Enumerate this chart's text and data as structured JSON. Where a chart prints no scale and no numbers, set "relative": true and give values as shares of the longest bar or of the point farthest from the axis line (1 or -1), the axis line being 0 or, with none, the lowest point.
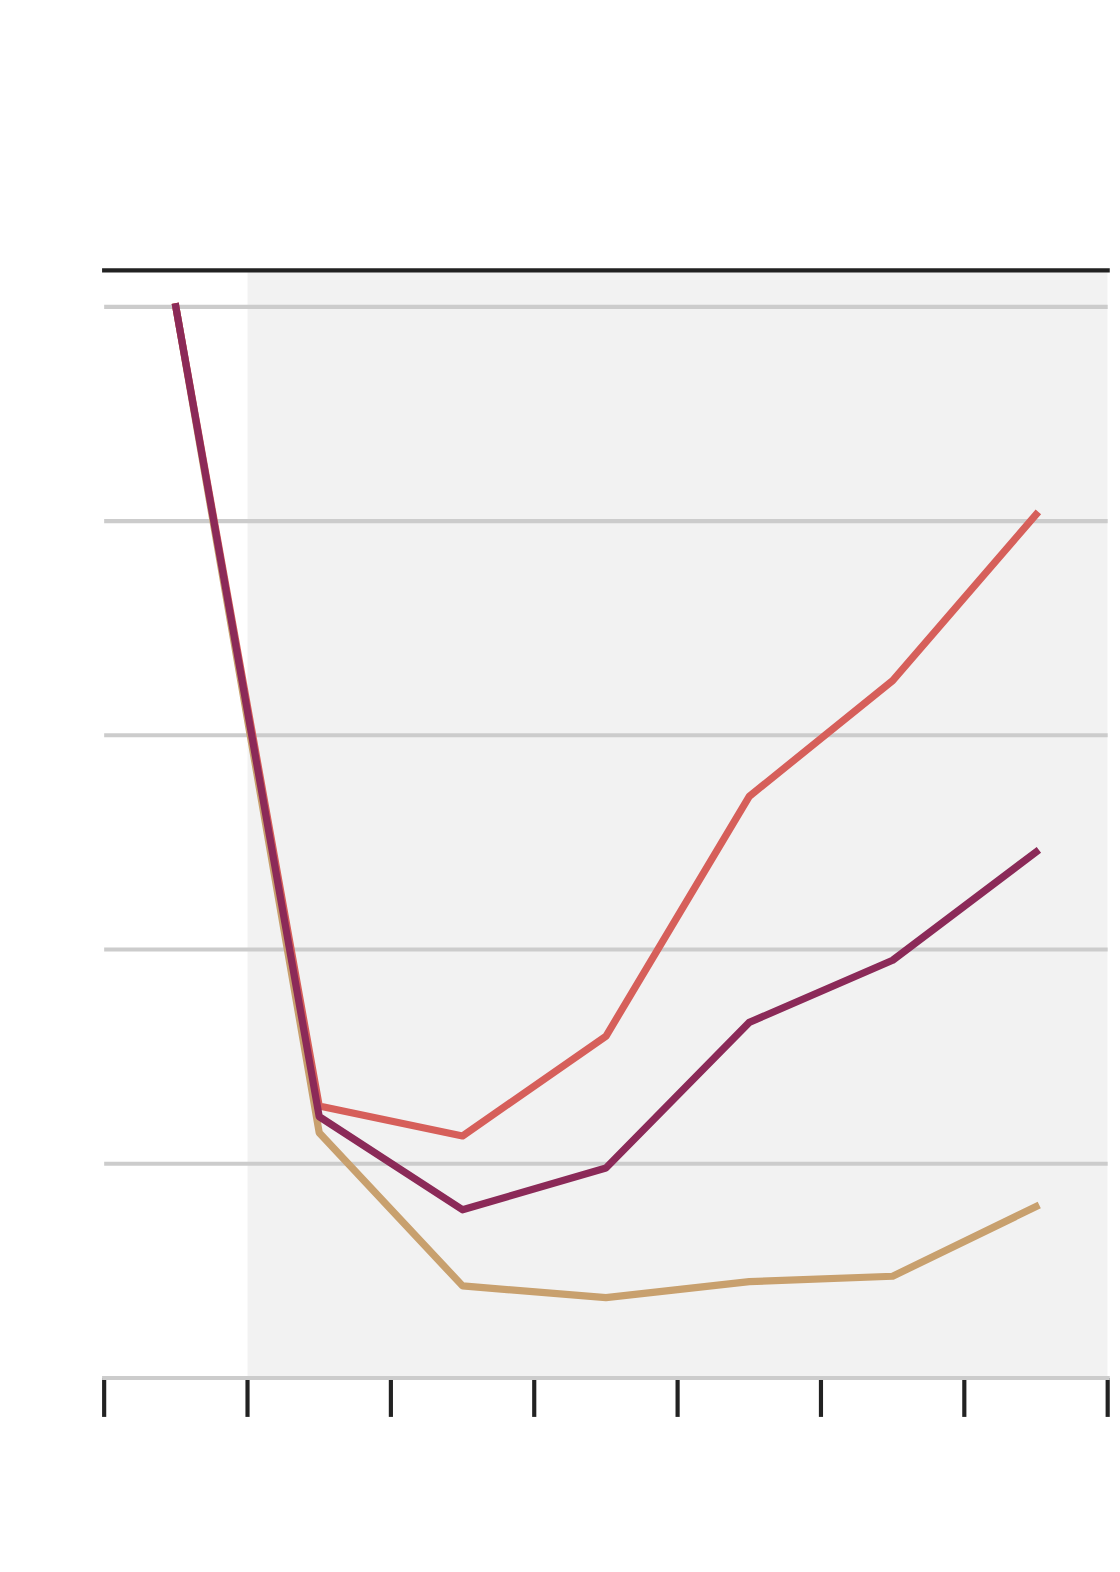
{
  "chart_data": {
    "type": "line",
    "relative": true,
    "categories": [
      null,
      null,
      null,
      null,
      null,
      null,
      null
    ],
    "series": [
      {
        "color": "#c8a06e",
        "values": [
          1,
          0.229,
          0.086,
          0.075,
          0.09,
          0.095,
          0.16
        ]
      },
      {
        "color": "#d65f5a",
        "values": [
          1,
          0.254,
          0.226,
          0.319,
          0.543,
          0.651,
          0.806
        ]
      },
      {
        "color": "#8b2a58",
        "values": [
          1,
          0.244,
          0.157,
          0.196,
          0.332,
          0.39,
          0.491
        ]
      }
    ],
    "grid": "y",
    "marker": "none",
    "line_style": "solid"
  }
}
